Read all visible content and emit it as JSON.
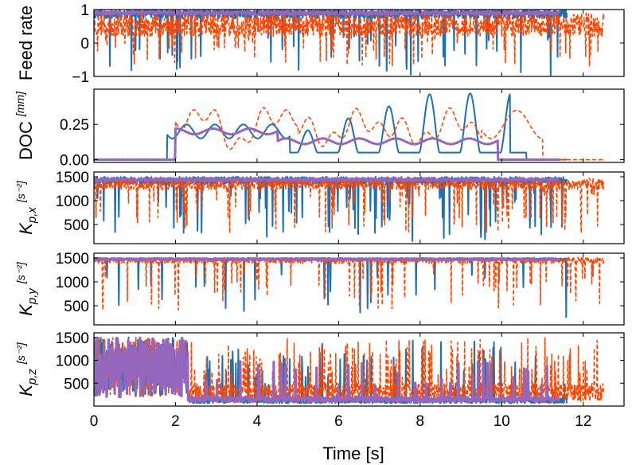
{
  "chart_data": [
    {
      "id": "feed",
      "type": "line",
      "ylabel": "Feed rate",
      "ylabel_unit": "",
      "ylim": [
        -1,
        1
      ],
      "yticks": [
        -1,
        0,
        1
      ],
      "ytick_labels": [
        "−1",
        "0",
        "1"
      ],
      "xlim": [
        0,
        13
      ],
      "xticks": [
        0,
        2,
        4,
        6,
        8,
        10,
        12
      ],
      "series": [
        {
          "color": "#1f6fb4",
          "style": "solid",
          "end": 11.6,
          "base": 0.88,
          "noise": 0.15,
          "spike_rate": 0.035,
          "spike_min": -1.0,
          "spike_max": 0.2,
          "seed": 11
        },
        {
          "color": "#ff4500",
          "style": "dashed",
          "end": 12.5,
          "base": 0.55,
          "noise": 0.35,
          "spike_rate": 0.06,
          "spike_min": -0.7,
          "spike_max": 0.4,
          "seed": 23
        },
        {
          "color": "#9467bd",
          "style": "dotted",
          "end": 11.4,
          "base": 0.9,
          "noise": 0.05,
          "spike_rate": 0.0,
          "spike_min": 0.8,
          "spike_max": 0.9,
          "seed": 31
        }
      ]
    },
    {
      "id": "doc",
      "type": "line",
      "ylabel": "DOC",
      "ylabel_unit": "[mm]",
      "ylim": [
        -0.02,
        0.5
      ],
      "yticks": [
        0.0,
        0.25
      ],
      "ytick_labels": [
        "0.00",
        "0.25"
      ],
      "xlim": [
        0,
        13
      ],
      "xticks": [
        0,
        2,
        4,
        6,
        8,
        10,
        12
      ],
      "series": [
        {
          "color": "#1f6fb4",
          "style": "solid",
          "end": 11.6,
          "doc": "blue"
        },
        {
          "color": "#ff4500",
          "style": "dashed",
          "end": 12.5,
          "doc": "red"
        },
        {
          "color": "#9467bd",
          "style": "dotted",
          "end": 11.4,
          "doc": "purple"
        }
      ]
    },
    {
      "id": "kpx",
      "type": "line",
      "ylabel": "K",
      "ylabel_sub": "p,x",
      "ylabel_unit": "[s⁻²]",
      "ylim": [
        100,
        1600
      ],
      "yticks": [
        500,
        1000,
        1500
      ],
      "ytick_labels": [
        "500",
        "1000",
        "1500"
      ],
      "xlim": [
        0,
        13
      ],
      "xticks": [
        0,
        2,
        4,
        6,
        8,
        10,
        12
      ],
      "series": [
        {
          "color": "#1f6fb4",
          "style": "solid",
          "end": 11.6,
          "base": 1420,
          "noise": 80,
          "spike_rate": 0.07,
          "spike_min": 150,
          "spike_max": 1200,
          "seed": 41
        },
        {
          "color": "#ff4500",
          "style": "dashed",
          "end": 12.5,
          "base": 1350,
          "noise": 120,
          "spike_rate": 0.08,
          "spike_min": 300,
          "spike_max": 1200,
          "seed": 53
        },
        {
          "color": "#9467bd",
          "style": "dotted",
          "end": 11.4,
          "base": 1440,
          "noise": 30,
          "spike_rate": 0.0,
          "spike_min": 1300,
          "spike_max": 1400,
          "seed": 61
        }
      ]
    },
    {
      "id": "kpy",
      "type": "line",
      "ylabel": "K",
      "ylabel_sub": "p,y",
      "ylabel_unit": "[s⁻²]",
      "ylim": [
        100,
        1600
      ],
      "yticks": [
        500,
        1000,
        1500
      ],
      "ytick_labels": [
        "500",
        "1000",
        "1500"
      ],
      "xlim": [
        0,
        13
      ],
      "xticks": [
        0,
        2,
        4,
        6,
        8,
        10,
        12
      ],
      "series": [
        {
          "color": "#1f6fb4",
          "style": "solid",
          "end": 11.6,
          "base": 1480,
          "noise": 20,
          "spike_rate": 0.02,
          "spike_min": 250,
          "spike_max": 1200,
          "seed": 71
        },
        {
          "color": "#ff4500",
          "style": "dashed",
          "end": 12.5,
          "base": 1450,
          "noise": 60,
          "spike_rate": 0.05,
          "spike_min": 400,
          "spike_max": 1200,
          "seed": 83
        },
        {
          "color": "#9467bd",
          "style": "dotted",
          "end": 11.4,
          "base": 1470,
          "noise": 20,
          "spike_rate": 0.0,
          "spike_min": 1400,
          "spike_max": 1450,
          "seed": 97
        }
      ]
    },
    {
      "id": "kpz",
      "type": "line",
      "ylabel": "K",
      "ylabel_sub": "p,z",
      "ylabel_unit": "[s⁻²]",
      "ylim": [
        0,
        1600
      ],
      "yticks": [
        500,
        1000,
        1500
      ],
      "ytick_labels": [
        "500",
        "1000",
        "1500"
      ],
      "xlim": [
        0,
        13
      ],
      "xticks": [
        0,
        2,
        4,
        6,
        8,
        10,
        12
      ],
      "xtick_labels": [
        "0",
        "2",
        "4",
        "6",
        "8",
        "10",
        "12"
      ],
      "xlabel": "Time [s]",
      "series": [
        {
          "color": "#1f6fb4",
          "style": "solid",
          "end": 11.6,
          "base": 120,
          "noise": 60,
          "spike_rate": 0.06,
          "spike_min": 400,
          "spike_max": 1500,
          "seed": 101,
          "early_high": true
        },
        {
          "color": "#ff4500",
          "style": "dashed",
          "end": 12.5,
          "base": 300,
          "noise": 200,
          "spike_rate": 0.12,
          "spike_min": 600,
          "spike_max": 1500,
          "seed": 113,
          "early_high": true
        },
        {
          "color": "#9467bd",
          "style": "dotted",
          "end": 11.4,
          "base": 150,
          "noise": 60,
          "spike_rate": 0.03,
          "spike_min": 400,
          "spike_max": 1000,
          "seed": 127,
          "early_high": true
        }
      ]
    }
  ]
}
